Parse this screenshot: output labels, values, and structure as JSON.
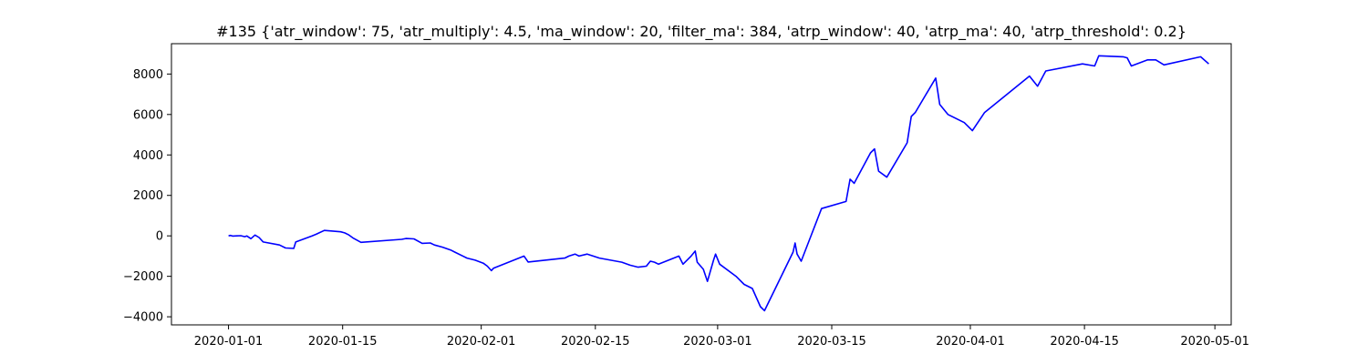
{
  "chart_data": {
    "type": "line",
    "title": "#135 {'atr_window': 75, 'atr_multiply': 4.5, 'ma_window': 20, 'filter_ma': 384, 'atrp_window': 40, 'atrp_ma': 40, 'atrp_threshold': 0.2}",
    "xlabel": "",
    "ylabel": "",
    "x_axis_type": "date",
    "xlim": [
      "2019-12-25",
      "2020-05-03"
    ],
    "ylim": [
      -4400,
      9500
    ],
    "x_ticks": [
      "2020-01-01",
      "2020-01-15",
      "2020-02-01",
      "2020-02-15",
      "2020-03-01",
      "2020-03-15",
      "2020-04-01",
      "2020-04-15",
      "2020-05-01"
    ],
    "y_ticks": [
      -4000,
      -2000,
      0,
      2000,
      4000,
      6000,
      8000
    ],
    "grid": false,
    "legend": "none",
    "series": [
      {
        "color": "#0000ff",
        "points": [
          [
            "2020-01-01T00:00",
            0
          ],
          [
            "2020-01-01T06:00",
            20
          ],
          [
            "2020-01-01T12:00",
            -10
          ],
          [
            "2020-01-02T00:00",
            0
          ],
          [
            "2020-01-02T12:00",
            10
          ],
          [
            "2020-01-03T00:00",
            -40
          ],
          [
            "2020-01-03T06:00",
            -5
          ],
          [
            "2020-01-03T18:00",
            -140
          ],
          [
            "2020-01-04T06:00",
            40
          ],
          [
            "2020-01-04T18:00",
            -80
          ],
          [
            "2020-01-05T06:00",
            -300
          ],
          [
            "2020-01-07T06:00",
            -450
          ],
          [
            "2020-01-08T00:00",
            -600
          ],
          [
            "2020-01-09T00:00",
            -620
          ],
          [
            "2020-01-09T06:00",
            -300
          ],
          [
            "2020-01-11T06:00",
            0
          ],
          [
            "2020-01-11T18:00",
            80
          ],
          [
            "2020-01-12T18:00",
            270
          ],
          [
            "2020-01-14T18:00",
            200
          ],
          [
            "2020-01-15T06:00",
            150
          ],
          [
            "2020-01-15T18:00",
            50
          ],
          [
            "2020-01-16T06:00",
            -100
          ],
          [
            "2020-01-17T06:00",
            -320
          ],
          [
            "2020-01-22T06:00",
            -170
          ],
          [
            "2020-01-22T18:00",
            -130
          ],
          [
            "2020-01-23T18:00",
            -150
          ],
          [
            "2020-01-24T18:00",
            -370
          ],
          [
            "2020-01-25T18:00",
            -350
          ],
          [
            "2020-01-26T06:00",
            -450
          ],
          [
            "2020-01-27T06:00",
            -560
          ],
          [
            "2020-01-28T06:00",
            -700
          ],
          [
            "2020-01-28T18:00",
            -800
          ],
          [
            "2020-01-30T06:00",
            -1100
          ],
          [
            "2020-01-31T06:00",
            -1200
          ],
          [
            "2020-02-01T06:00",
            -1350
          ],
          [
            "2020-02-01T18:00",
            -1500
          ],
          [
            "2020-02-02T06:00",
            -1720
          ],
          [
            "2020-02-02T12:00",
            -1600
          ],
          [
            "2020-02-06T06:00",
            -1000
          ],
          [
            "2020-02-06T18:00",
            -1290
          ],
          [
            "2020-02-11T06:00",
            -1100
          ],
          [
            "2020-02-11T18:00",
            -1000
          ],
          [
            "2020-02-12T12:00",
            -900
          ],
          [
            "2020-02-13T00:00",
            -1000
          ],
          [
            "2020-02-14T00:00",
            -900
          ],
          [
            "2020-02-15T12:00",
            -1100
          ],
          [
            "2020-02-18T06:00",
            -1300
          ],
          [
            "2020-02-19T06:00",
            -1450
          ],
          [
            "2020-02-20T06:00",
            -1550
          ],
          [
            "2020-02-21T06:00",
            -1500
          ],
          [
            "2020-02-21T18:00",
            -1250
          ],
          [
            "2020-02-22T06:00",
            -1300
          ],
          [
            "2020-02-22T18:00",
            -1400
          ],
          [
            "2020-02-25T06:00",
            -1000
          ],
          [
            "2020-02-25T18:00",
            -1400
          ],
          [
            "2020-02-26T18:00",
            -1000
          ],
          [
            "2020-02-27T06:00",
            -750
          ],
          [
            "2020-02-27T12:00",
            -1300
          ],
          [
            "2020-02-28T06:00",
            -1650
          ],
          [
            "2020-02-28T18:00",
            -2250
          ],
          [
            "2020-02-29T12:00",
            -1200
          ],
          [
            "2020-02-29T18:00",
            -900
          ],
          [
            "2020-03-01T06:00",
            -1400
          ],
          [
            "2020-03-03T06:00",
            -2000
          ],
          [
            "2020-03-04T06:00",
            -2400
          ],
          [
            "2020-03-05T06:00",
            -2600
          ],
          [
            "2020-03-06T06:00",
            -3500
          ],
          [
            "2020-03-06T18:00",
            -3700
          ],
          [
            "2020-03-10T06:00",
            -800
          ],
          [
            "2020-03-10T12:00",
            -350
          ],
          [
            "2020-03-10T18:00",
            -900
          ],
          [
            "2020-03-11T06:00",
            -1250
          ],
          [
            "2020-03-13T18:00",
            1350
          ],
          [
            "2020-03-16T18:00",
            1700
          ],
          [
            "2020-03-17T06:00",
            2800
          ],
          [
            "2020-03-17T18:00",
            2600
          ],
          [
            "2020-03-19T18:00",
            4100
          ],
          [
            "2020-03-20T06:00",
            4300
          ],
          [
            "2020-03-20T18:00",
            3200
          ],
          [
            "2020-03-21T18:00",
            2900
          ],
          [
            "2020-03-24T06:00",
            4600
          ],
          [
            "2020-03-24T18:00",
            5900
          ],
          [
            "2020-03-25T06:00",
            6100
          ],
          [
            "2020-03-27T18:00",
            7800
          ],
          [
            "2020-03-28T06:00",
            6500
          ],
          [
            "2020-03-29T06:00",
            6000
          ],
          [
            "2020-03-31T06:00",
            5600
          ],
          [
            "2020-04-01T06:00",
            5200
          ],
          [
            "2020-04-02T18:00",
            6100
          ],
          [
            "2020-04-08T06:00",
            7900
          ],
          [
            "2020-04-09T06:00",
            7400
          ],
          [
            "2020-04-10T06:00",
            8150
          ],
          [
            "2020-04-14T18:00",
            8500
          ],
          [
            "2020-04-16T06:00",
            8400
          ],
          [
            "2020-04-16T18:00",
            8900
          ],
          [
            "2020-04-19T18:00",
            8850
          ],
          [
            "2020-04-20T06:00",
            8800
          ],
          [
            "2020-04-20T18:00",
            8400
          ],
          [
            "2020-04-22T18:00",
            8700
          ],
          [
            "2020-04-23T18:00",
            8700
          ],
          [
            "2020-04-24T18:00",
            8450
          ],
          [
            "2020-04-29T06:00",
            8850
          ],
          [
            "2020-04-30T06:00",
            8500
          ]
        ]
      }
    ]
  }
}
